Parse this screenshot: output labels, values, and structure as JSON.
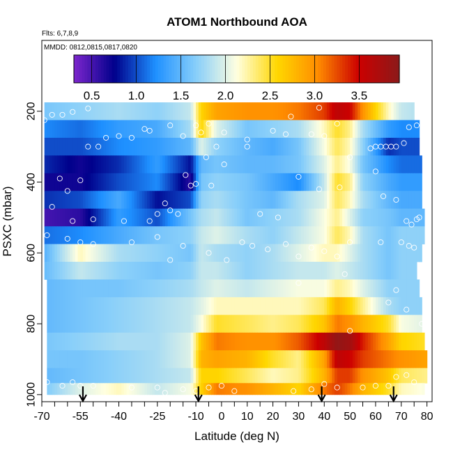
{
  "chart_data": {
    "type": "heatmap",
    "title": "ATOM1 Northbound AOA",
    "subtitle_lines": [
      "Flts: 6,7,8,9",
      "MMDD: 0812,0815,0817,0820"
    ],
    "xlabel": "Latitude (deg N)",
    "ylabel": "PSXC (mbar)",
    "xlim": [
      -70,
      82
    ],
    "ylim": [
      1020,
      0
    ],
    "y_reversed": true,
    "x_ticks": [
      -70,
      -55,
      -40,
      -25,
      -10,
      0,
      10,
      20,
      30,
      40,
      50,
      60,
      70,
      80
    ],
    "x_tick_labels": [
      "-70",
      "-55",
      "-40",
      "-25",
      "-10",
      "0",
      "10",
      "20",
      "30",
      "40",
      "50",
      "60",
      "70",
      "80"
    ],
    "y_ticks": [
      200,
      400,
      600,
      800,
      1000
    ],
    "y_tick_labels": [
      "200",
      "400",
      "600",
      "800",
      "1000"
    ],
    "colorbar": {
      "range": [
        0.3,
        3.95
      ],
      "ticks": [
        0.5,
        1.0,
        1.5,
        2.0,
        2.5,
        3.0,
        3.5
      ],
      "tick_labels": [
        "0.5",
        "1.0",
        "1.5",
        "2.0",
        "2.5",
        "3.0",
        "3.5"
      ],
      "colors": [
        "#7d26cd",
        "#00008b",
        "#1e90ff",
        "#87cefa",
        "#ffffe0",
        "#ffd700",
        "#ff8c00",
        "#cc0000",
        "#8b1a1a"
      ]
    },
    "pressure_levels": [
      200,
      250,
      300,
      350,
      400,
      450,
      500,
      550,
      600,
      650,
      700,
      750,
      800,
      850,
      900,
      950,
      985
    ],
    "level_x_range": [
      [
        -69,
        75
      ],
      [
        -69,
        77
      ],
      [
        -69,
        77
      ],
      [
        -69,
        78
      ],
      [
        -69,
        78
      ],
      [
        -69,
        78
      ],
      [
        -69,
        79
      ],
      [
        -69,
        79
      ],
      [
        -69,
        78
      ],
      [
        -69,
        76
      ],
      [
        -68,
        77
      ],
      [
        -68,
        78
      ],
      [
        -68,
        78
      ],
      [
        -68,
        79
      ],
      [
        -68,
        80
      ],
      [
        -68,
        80
      ],
      [
        -68,
        79
      ]
    ],
    "age_profile": {
      "nodes_lat": [
        -70,
        -55,
        -40,
        -25,
        -12,
        -8,
        -2,
        10,
        20,
        30,
        40,
        45,
        50,
        55,
        65,
        70,
        80
      ],
      "levels": [
        [
          1.6,
          1.7,
          1.8,
          1.7,
          1.9,
          2.6,
          2.9,
          3.0,
          3.0,
          3.1,
          3.3,
          3.6,
          3.5,
          3.0,
          2.2,
          1.9,
          1.8
        ],
        [
          1.2,
          1.1,
          1.3,
          1.4,
          1.8,
          2.6,
          2.0,
          1.6,
          1.7,
          1.8,
          2.2,
          2.5,
          2.3,
          1.8,
          1.3,
          1.2,
          1.2
        ],
        [
          1.0,
          1.0,
          1.2,
          1.3,
          1.5,
          2.0,
          1.7,
          1.5,
          1.4,
          1.6,
          2.1,
          2.4,
          2.2,
          1.7,
          0.9,
          1.0,
          1.0
        ],
        [
          0.9,
          0.7,
          0.9,
          1.3,
          0.8,
          1.5,
          1.6,
          1.5,
          1.5,
          1.6,
          2.0,
          2.3,
          2.1,
          1.6,
          1.2,
          1.1,
          1.1
        ],
        [
          0.7,
          0.7,
          1.0,
          1.2,
          0.6,
          1.6,
          1.7,
          1.6,
          1.4,
          1.2,
          1.9,
          2.5,
          2.3,
          1.7,
          1.4,
          1.3,
          1.3
        ],
        [
          0.9,
          1.0,
          1.4,
          0.8,
          1.0,
          1.7,
          1.8,
          1.6,
          1.5,
          1.8,
          2.0,
          2.4,
          2.2,
          1.8,
          1.5,
          1.4,
          1.4
        ],
        [
          0.5,
          0.6,
          1.3,
          1.0,
          1.6,
          1.8,
          1.9,
          1.6,
          1.7,
          1.8,
          2.1,
          2.3,
          2.0,
          1.7,
          1.6,
          1.5,
          1.5
        ],
        [
          1.1,
          1.2,
          1.4,
          1.6,
          1.7,
          1.9,
          2.0,
          1.8,
          1.7,
          1.9,
          2.1,
          2.4,
          2.2,
          1.8,
          1.6,
          1.7,
          1.7
        ],
        [
          1.4,
          2.2,
          1.8,
          1.7,
          1.6,
          1.9,
          1.8,
          1.7,
          1.8,
          2.0,
          2.2,
          2.2,
          2.0,
          1.8,
          1.6,
          1.7,
          1.7
        ],
        [
          1.5,
          1.9,
          1.7,
          1.6,
          1.7,
          1.9,
          1.9,
          1.7,
          1.8,
          1.9,
          1.9,
          2.0,
          1.9,
          1.8,
          1.6,
          1.7,
          1.7
        ],
        [
          1.5,
          1.6,
          1.6,
          1.7,
          1.8,
          1.9,
          2.0,
          1.9,
          2.0,
          2.1,
          2.1,
          2.3,
          2.2,
          2.0,
          1.7,
          1.7,
          1.7
        ],
        [
          1.5,
          1.6,
          1.7,
          1.8,
          1.9,
          2.0,
          2.2,
          2.2,
          2.2,
          2.2,
          2.4,
          2.8,
          2.6,
          2.3,
          1.8,
          1.7,
          1.7
        ],
        [
          1.5,
          1.6,
          1.7,
          1.8,
          1.9,
          2.1,
          2.5,
          2.4,
          2.3,
          2.4,
          2.7,
          3.1,
          3.0,
          2.8,
          2.5,
          2.1,
          2.0
        ],
        [
          1.6,
          1.7,
          1.8,
          1.8,
          2.0,
          2.7,
          3.1,
          3.0,
          3.0,
          3.2,
          3.6,
          3.9,
          3.8,
          3.4,
          2.9,
          2.6,
          2.5
        ],
        [
          1.6,
          1.6,
          1.7,
          1.8,
          2.0,
          2.8,
          2.9,
          2.8,
          2.5,
          2.3,
          2.9,
          3.6,
          3.5,
          3.3,
          3.1,
          3.0,
          2.9
        ],
        [
          1.5,
          1.6,
          1.7,
          1.8,
          1.9,
          2.6,
          2.6,
          2.4,
          2.2,
          2.3,
          2.8,
          3.3,
          3.3,
          3.0,
          2.7,
          2.4,
          2.3
        ],
        [
          1.6,
          2.0,
          2.2,
          1.9,
          2.1,
          2.6,
          3.1,
          3.0,
          2.8,
          2.6,
          3.1,
          3.3,
          3.1,
          2.8,
          2.5,
          2.2,
          2.1
        ]
      ]
    },
    "sample_points": [
      [
        -69,
        225
      ],
      [
        -66,
        210
      ],
      [
        -62,
        210
      ],
      [
        -58,
        202
      ],
      [
        -52,
        192
      ],
      [
        -20,
        240
      ],
      [
        -10,
        240
      ],
      [
        -5,
        235
      ],
      [
        38,
        190
      ],
      [
        73,
        245
      ],
      [
        76,
        240
      ],
      [
        27,
        215
      ],
      [
        45,
        235
      ],
      [
        -45,
        275
      ],
      [
        -40,
        270
      ],
      [
        -35,
        275
      ],
      [
        -30,
        250
      ],
      [
        -28,
        255
      ],
      [
        -15,
        270
      ],
      [
        -8,
        260
      ],
      [
        1,
        260
      ],
      [
        10,
        280
      ],
      [
        20,
        255
      ],
      [
        25,
        265
      ],
      [
        35,
        265
      ],
      [
        40,
        270
      ],
      [
        58,
        305
      ],
      [
        60,
        300
      ],
      [
        62,
        300
      ],
      [
        64,
        300
      ],
      [
        66,
        300
      ],
      [
        68,
        300
      ],
      [
        71,
        290
      ],
      [
        -52,
        300
      ],
      [
        -48,
        300
      ],
      [
        -55,
        395
      ],
      [
        -60,
        425
      ],
      [
        -63,
        390
      ],
      [
        -66,
        470
      ],
      [
        -58,
        510
      ],
      [
        -50,
        505
      ],
      [
        -38,
        510
      ],
      [
        -28,
        510
      ],
      [
        -25,
        490
      ],
      [
        -22,
        460
      ],
      [
        -20,
        480
      ],
      [
        -17,
        490
      ],
      [
        -14,
        380
      ],
      [
        -12,
        410
      ],
      [
        -10,
        405
      ],
      [
        -6,
        330
      ],
      [
        -4,
        410
      ],
      [
        -2,
        300
      ],
      [
        1,
        350
      ],
      [
        10,
        300
      ],
      [
        15,
        490
      ],
      [
        22,
        500
      ],
      [
        30,
        385
      ],
      [
        38,
        420
      ],
      [
        46,
        415
      ],
      [
        50,
        330
      ],
      [
        60,
        370
      ],
      [
        63,
        440
      ],
      [
        68,
        450
      ],
      [
        72,
        510
      ],
      [
        74,
        520
      ],
      [
        76,
        505
      ],
      [
        77,
        500
      ],
      [
        80,
        455
      ],
      [
        -68,
        550
      ],
      [
        -60,
        560
      ],
      [
        -55,
        570
      ],
      [
        -50,
        575
      ],
      [
        -35,
        570
      ],
      [
        -25,
        555
      ],
      [
        -15,
        580
      ],
      [
        -5,
        600
      ],
      [
        2,
        620
      ],
      [
        8,
        570
      ],
      [
        12,
        580
      ],
      [
        18,
        590
      ],
      [
        25,
        575
      ],
      [
        30,
        610
      ],
      [
        35,
        585
      ],
      [
        40,
        595
      ],
      [
        45,
        610
      ],
      [
        48,
        660
      ],
      [
        50,
        570
      ],
      [
        62,
        570
      ],
      [
        70,
        570
      ],
      [
        73,
        580
      ],
      [
        75,
        585
      ],
      [
        -20,
        620
      ],
      [
        30,
        685
      ],
      [
        65,
        740
      ],
      [
        68,
        705
      ],
      [
        72,
        760
      ],
      [
        78,
        800
      ],
      [
        50,
        820
      ],
      [
        75,
        965
      ],
      [
        72,
        945
      ],
      [
        68,
        950
      ],
      [
        65,
        975
      ],
      [
        -68,
        965
      ],
      [
        -62,
        975
      ],
      [
        -58,
        965
      ],
      [
        -55,
        975
      ],
      [
        -50,
        975
      ],
      [
        -35,
        980
      ],
      [
        -25,
        980
      ],
      [
        -22,
        995
      ],
      [
        -15,
        985
      ],
      [
        -10,
        990
      ],
      [
        -5,
        980
      ],
      [
        0,
        975
      ],
      [
        5,
        990
      ],
      [
        28,
        990
      ],
      [
        35,
        985
      ],
      [
        40,
        970
      ],
      [
        45,
        980
      ],
      [
        55,
        980
      ],
      [
        60,
        975
      ]
    ],
    "arrows_lat": [
      -54,
      -9,
      39,
      67
    ]
  }
}
